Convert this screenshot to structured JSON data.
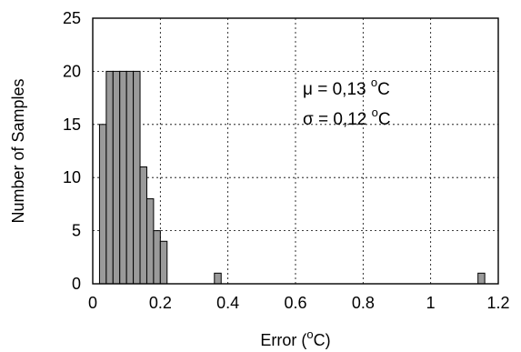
{
  "chart_data": {
    "type": "bar",
    "xlabel_prefix": "Error (",
    "xlabel_sup": "o",
    "xlabel_suffix": "C)",
    "ylabel": "Number of Samples",
    "xlim": [
      0,
      1.2
    ],
    "ylim": [
      0,
      25
    ],
    "grid": true,
    "x_ticks": [
      "0",
      "0.2",
      "0.4",
      "0.6",
      "0.8",
      "1",
      "1.2"
    ],
    "y_ticks": [
      "0",
      "5",
      "10",
      "15",
      "20",
      "25"
    ],
    "bin_width": 0.02,
    "bins": [
      {
        "x0": 0.02,
        "value": 15
      },
      {
        "x0": 0.04,
        "value": 20
      },
      {
        "x0": 0.06,
        "value": 20
      },
      {
        "x0": 0.08,
        "value": 20
      },
      {
        "x0": 0.1,
        "value": 20
      },
      {
        "x0": 0.12,
        "value": 20
      },
      {
        "x0": 0.14,
        "value": 11
      },
      {
        "x0": 0.16,
        "value": 8
      },
      {
        "x0": 0.18,
        "value": 5
      },
      {
        "x0": 0.2,
        "value": 4
      },
      {
        "x0": 0.36,
        "value": 1
      },
      {
        "x0": 1.14,
        "value": 1
      }
    ],
    "annotations": {
      "mu": {
        "prefix": "μ = 0,13 ",
        "sup": "o",
        "suffix": "C"
      },
      "sigma": {
        "prefix": "σ = 0,12 ",
        "sup": "o",
        "suffix": "C"
      }
    }
  }
}
